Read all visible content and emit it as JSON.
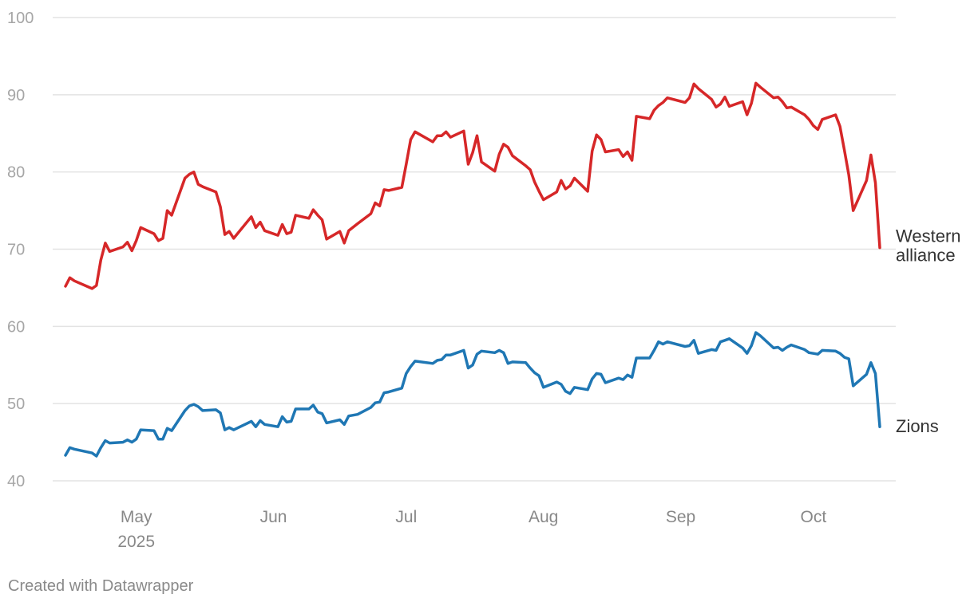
{
  "chart_data": {
    "type": "line",
    "title": "",
    "xlabel": "",
    "ylabel": "",
    "ylim": [
      40,
      100
    ],
    "y_ticks": [
      "40",
      "50",
      "60",
      "70",
      "80",
      "90",
      "100"
    ],
    "x_range": [
      "2025-04-15",
      "2025-10-16"
    ],
    "x_ticks": [
      {
        "label": "May",
        "sublabel": "2025",
        "date": "2025-05-01"
      },
      {
        "label": "Jun",
        "sublabel": "",
        "date": "2025-06-01"
      },
      {
        "label": "Jul",
        "sublabel": "",
        "date": "2025-07-01"
      },
      {
        "label": "Aug",
        "sublabel": "",
        "date": "2025-08-01"
      },
      {
        "label": "Sep",
        "sublabel": "",
        "date": "2025-09-01"
      },
      {
        "label": "Oct",
        "sublabel": "",
        "date": "2025-10-01"
      }
    ],
    "grid": "horizontal",
    "legend": "direct labels at right end of lines",
    "series": [
      {
        "name": "Western alliance",
        "label_lines": [
          "Western",
          "alliance"
        ],
        "color": "#d62728",
        "points": [
          [
            "2025-04-15",
            65.2
          ],
          [
            "2025-04-16",
            66.3
          ],
          [
            "2025-04-17",
            65.9
          ],
          [
            "2025-04-21",
            64.9
          ],
          [
            "2025-04-22",
            65.3
          ],
          [
            "2025-04-23",
            68.6
          ],
          [
            "2025-04-24",
            70.8
          ],
          [
            "2025-04-25",
            69.7
          ],
          [
            "2025-04-28",
            70.3
          ],
          [
            "2025-04-29",
            70.9
          ],
          [
            "2025-04-30",
            69.8
          ],
          [
            "2025-05-01",
            71.1
          ],
          [
            "2025-05-02",
            72.8
          ],
          [
            "2025-05-05",
            72.0
          ],
          [
            "2025-05-06",
            71.1
          ],
          [
            "2025-05-07",
            71.4
          ],
          [
            "2025-05-08",
            75.0
          ],
          [
            "2025-05-09",
            74.4
          ],
          [
            "2025-05-12",
            79.2
          ],
          [
            "2025-05-13",
            79.7
          ],
          [
            "2025-05-14",
            80.0
          ],
          [
            "2025-05-15",
            78.4
          ],
          [
            "2025-05-16",
            78.1
          ],
          [
            "2025-05-19",
            77.4
          ],
          [
            "2025-05-20",
            75.5
          ],
          [
            "2025-05-21",
            71.9
          ],
          [
            "2025-05-22",
            72.3
          ],
          [
            "2025-05-23",
            71.4
          ],
          [
            "2025-05-27",
            74.2
          ],
          [
            "2025-05-28",
            72.8
          ],
          [
            "2025-05-29",
            73.5
          ],
          [
            "2025-05-30",
            72.4
          ],
          [
            "2025-06-02",
            71.8
          ],
          [
            "2025-06-03",
            73.2
          ],
          [
            "2025-06-04",
            72.0
          ],
          [
            "2025-06-05",
            72.2
          ],
          [
            "2025-06-06",
            74.4
          ],
          [
            "2025-06-09",
            74.0
          ],
          [
            "2025-06-10",
            75.1
          ],
          [
            "2025-06-11",
            74.4
          ],
          [
            "2025-06-12",
            73.8
          ],
          [
            "2025-06-13",
            71.3
          ],
          [
            "2025-06-16",
            72.3
          ],
          [
            "2025-06-17",
            70.8
          ],
          [
            "2025-06-18",
            72.4
          ],
          [
            "2025-06-20",
            73.3
          ],
          [
            "2025-06-23",
            74.6
          ],
          [
            "2025-06-24",
            76.0
          ],
          [
            "2025-06-25",
            75.6
          ],
          [
            "2025-06-26",
            77.7
          ],
          [
            "2025-06-27",
            77.6
          ],
          [
            "2025-06-30",
            78.0
          ],
          [
            "2025-07-01",
            81.0
          ],
          [
            "2025-07-02",
            84.2
          ],
          [
            "2025-07-03",
            85.2
          ],
          [
            "2025-07-07",
            83.9
          ],
          [
            "2025-07-08",
            84.7
          ],
          [
            "2025-07-09",
            84.7
          ],
          [
            "2025-07-10",
            85.2
          ],
          [
            "2025-07-11",
            84.5
          ],
          [
            "2025-07-14",
            85.3
          ],
          [
            "2025-07-15",
            81.0
          ],
          [
            "2025-07-16",
            82.5
          ],
          [
            "2025-07-17",
            84.7
          ],
          [
            "2025-07-18",
            81.3
          ],
          [
            "2025-07-21",
            80.1
          ],
          [
            "2025-07-22",
            82.3
          ],
          [
            "2025-07-23",
            83.6
          ],
          [
            "2025-07-24",
            83.2
          ],
          [
            "2025-07-25",
            82.1
          ],
          [
            "2025-07-28",
            80.8
          ],
          [
            "2025-07-29",
            80.3
          ],
          [
            "2025-07-30",
            78.7
          ],
          [
            "2025-07-31",
            77.5
          ],
          [
            "2025-08-01",
            76.4
          ],
          [
            "2025-08-04",
            77.4
          ],
          [
            "2025-08-05",
            78.9
          ],
          [
            "2025-08-06",
            77.8
          ],
          [
            "2025-08-07",
            78.2
          ],
          [
            "2025-08-08",
            79.2
          ],
          [
            "2025-08-11",
            77.5
          ],
          [
            "2025-08-12",
            82.7
          ],
          [
            "2025-08-13",
            84.8
          ],
          [
            "2025-08-14",
            84.2
          ],
          [
            "2025-08-15",
            82.6
          ],
          [
            "2025-08-18",
            82.9
          ],
          [
            "2025-08-19",
            82.0
          ],
          [
            "2025-08-20",
            82.6
          ],
          [
            "2025-08-21",
            81.5
          ],
          [
            "2025-08-22",
            87.2
          ],
          [
            "2025-08-25",
            86.9
          ],
          [
            "2025-08-26",
            88.0
          ],
          [
            "2025-08-27",
            88.6
          ],
          [
            "2025-08-28",
            89.0
          ],
          [
            "2025-08-29",
            89.6
          ],
          [
            "2025-09-02",
            89.0
          ],
          [
            "2025-09-03",
            89.6
          ],
          [
            "2025-09-04",
            91.4
          ],
          [
            "2025-09-05",
            90.8
          ],
          [
            "2025-09-08",
            89.4
          ],
          [
            "2025-09-09",
            88.4
          ],
          [
            "2025-09-10",
            88.8
          ],
          [
            "2025-09-11",
            89.7
          ],
          [
            "2025-09-12",
            88.5
          ],
          [
            "2025-09-15",
            89.1
          ],
          [
            "2025-09-16",
            87.4
          ],
          [
            "2025-09-17",
            88.9
          ],
          [
            "2025-09-18",
            91.5
          ],
          [
            "2025-09-19",
            91.0
          ],
          [
            "2025-09-22",
            89.6
          ],
          [
            "2025-09-23",
            89.7
          ],
          [
            "2025-09-24",
            89.1
          ],
          [
            "2025-09-25",
            88.3
          ],
          [
            "2025-09-26",
            88.4
          ],
          [
            "2025-09-29",
            87.4
          ],
          [
            "2025-09-30",
            86.8
          ],
          [
            "2025-10-01",
            86.0
          ],
          [
            "2025-10-02",
            85.5
          ],
          [
            "2025-10-03",
            86.8
          ],
          [
            "2025-10-06",
            87.4
          ],
          [
            "2025-10-07",
            85.9
          ],
          [
            "2025-10-08",
            82.8
          ],
          [
            "2025-10-09",
            79.6
          ],
          [
            "2025-10-10",
            75.0
          ],
          [
            "2025-10-13",
            78.9
          ],
          [
            "2025-10-14",
            82.2
          ],
          [
            "2025-10-15",
            78.6
          ],
          [
            "2025-10-16",
            70.2
          ]
        ]
      },
      {
        "name": "Zions",
        "label_lines": [
          "Zions"
        ],
        "color": "#1f77b4",
        "points": [
          [
            "2025-04-15",
            43.3
          ],
          [
            "2025-04-16",
            44.3
          ],
          [
            "2025-04-17",
            44.1
          ],
          [
            "2025-04-21",
            43.6
          ],
          [
            "2025-04-22",
            43.2
          ],
          [
            "2025-04-23",
            44.3
          ],
          [
            "2025-04-24",
            45.2
          ],
          [
            "2025-04-25",
            44.9
          ],
          [
            "2025-04-28",
            45.0
          ],
          [
            "2025-04-29",
            45.3
          ],
          [
            "2025-04-30",
            45.0
          ],
          [
            "2025-05-01",
            45.4
          ],
          [
            "2025-05-02",
            46.6
          ],
          [
            "2025-05-05",
            46.5
          ],
          [
            "2025-05-06",
            45.4
          ],
          [
            "2025-05-07",
            45.4
          ],
          [
            "2025-05-08",
            46.8
          ],
          [
            "2025-05-09",
            46.5
          ],
          [
            "2025-05-12",
            49.1
          ],
          [
            "2025-05-13",
            49.7
          ],
          [
            "2025-05-14",
            49.9
          ],
          [
            "2025-05-15",
            49.6
          ],
          [
            "2025-05-16",
            49.1
          ],
          [
            "2025-05-19",
            49.2
          ],
          [
            "2025-05-20",
            48.8
          ],
          [
            "2025-05-21",
            46.6
          ],
          [
            "2025-05-22",
            46.9
          ],
          [
            "2025-05-23",
            46.6
          ],
          [
            "2025-05-27",
            47.7
          ],
          [
            "2025-05-28",
            47.0
          ],
          [
            "2025-05-29",
            47.8
          ],
          [
            "2025-05-30",
            47.3
          ],
          [
            "2025-06-02",
            47.0
          ],
          [
            "2025-06-03",
            48.3
          ],
          [
            "2025-06-04",
            47.6
          ],
          [
            "2025-06-05",
            47.7
          ],
          [
            "2025-06-06",
            49.3
          ],
          [
            "2025-06-09",
            49.3
          ],
          [
            "2025-06-10",
            49.8
          ],
          [
            "2025-06-11",
            48.9
          ],
          [
            "2025-06-12",
            48.7
          ],
          [
            "2025-06-13",
            47.5
          ],
          [
            "2025-06-16",
            47.9
          ],
          [
            "2025-06-17",
            47.3
          ],
          [
            "2025-06-18",
            48.4
          ],
          [
            "2025-06-20",
            48.6
          ],
          [
            "2025-06-23",
            49.5
          ],
          [
            "2025-06-24",
            50.1
          ],
          [
            "2025-06-25",
            50.2
          ],
          [
            "2025-06-26",
            51.4
          ],
          [
            "2025-06-27",
            51.5
          ],
          [
            "2025-06-30",
            52.0
          ],
          [
            "2025-07-01",
            53.9
          ],
          [
            "2025-07-02",
            54.8
          ],
          [
            "2025-07-03",
            55.5
          ],
          [
            "2025-07-07",
            55.2
          ],
          [
            "2025-07-08",
            55.6
          ],
          [
            "2025-07-09",
            55.7
          ],
          [
            "2025-07-10",
            56.3
          ],
          [
            "2025-07-11",
            56.3
          ],
          [
            "2025-07-14",
            56.9
          ],
          [
            "2025-07-15",
            54.6
          ],
          [
            "2025-07-16",
            55.0
          ],
          [
            "2025-07-17",
            56.4
          ],
          [
            "2025-07-18",
            56.8
          ],
          [
            "2025-07-21",
            56.6
          ],
          [
            "2025-07-22",
            56.9
          ],
          [
            "2025-07-23",
            56.6
          ],
          [
            "2025-07-24",
            55.2
          ],
          [
            "2025-07-25",
            55.4
          ],
          [
            "2025-07-28",
            55.3
          ],
          [
            "2025-07-29",
            54.6
          ],
          [
            "2025-07-30",
            54.0
          ],
          [
            "2025-07-31",
            53.6
          ],
          [
            "2025-08-01",
            52.1
          ],
          [
            "2025-08-04",
            52.8
          ],
          [
            "2025-08-05",
            52.5
          ],
          [
            "2025-08-06",
            51.6
          ],
          [
            "2025-08-07",
            51.3
          ],
          [
            "2025-08-08",
            52.1
          ],
          [
            "2025-08-11",
            51.8
          ],
          [
            "2025-08-12",
            53.2
          ],
          [
            "2025-08-13",
            53.9
          ],
          [
            "2025-08-14",
            53.8
          ],
          [
            "2025-08-15",
            52.7
          ],
          [
            "2025-08-18",
            53.3
          ],
          [
            "2025-08-19",
            53.1
          ],
          [
            "2025-08-20",
            53.7
          ],
          [
            "2025-08-21",
            53.4
          ],
          [
            "2025-08-22",
            55.9
          ],
          [
            "2025-08-25",
            55.9
          ],
          [
            "2025-08-26",
            56.9
          ],
          [
            "2025-08-27",
            58.0
          ],
          [
            "2025-08-28",
            57.7
          ],
          [
            "2025-08-29",
            58.0
          ],
          [
            "2025-09-02",
            57.4
          ],
          [
            "2025-09-03",
            57.5
          ],
          [
            "2025-09-04",
            58.2
          ],
          [
            "2025-09-05",
            56.5
          ],
          [
            "2025-09-08",
            57.0
          ],
          [
            "2025-09-09",
            56.9
          ],
          [
            "2025-09-10",
            58.0
          ],
          [
            "2025-09-11",
            58.2
          ],
          [
            "2025-09-12",
            58.4
          ],
          [
            "2025-09-15",
            57.2
          ],
          [
            "2025-09-16",
            56.5
          ],
          [
            "2025-09-17",
            57.5
          ],
          [
            "2025-09-18",
            59.2
          ],
          [
            "2025-09-19",
            58.8
          ],
          [
            "2025-09-22",
            57.2
          ],
          [
            "2025-09-23",
            57.3
          ],
          [
            "2025-09-24",
            56.9
          ],
          [
            "2025-09-25",
            57.3
          ],
          [
            "2025-09-26",
            57.6
          ],
          [
            "2025-09-29",
            57.0
          ],
          [
            "2025-09-30",
            56.6
          ],
          [
            "2025-10-01",
            56.5
          ],
          [
            "2025-10-02",
            56.4
          ],
          [
            "2025-10-03",
            56.9
          ],
          [
            "2025-10-06",
            56.8
          ],
          [
            "2025-10-07",
            56.5
          ],
          [
            "2025-10-08",
            56.0
          ],
          [
            "2025-10-09",
            55.8
          ],
          [
            "2025-10-10",
            52.3
          ],
          [
            "2025-10-13",
            53.8
          ],
          [
            "2025-10-14",
            55.3
          ],
          [
            "2025-10-15",
            53.9
          ],
          [
            "2025-10-16",
            47.0
          ]
        ]
      }
    ]
  },
  "footer": {
    "credit": "Created with Datawrapper"
  }
}
